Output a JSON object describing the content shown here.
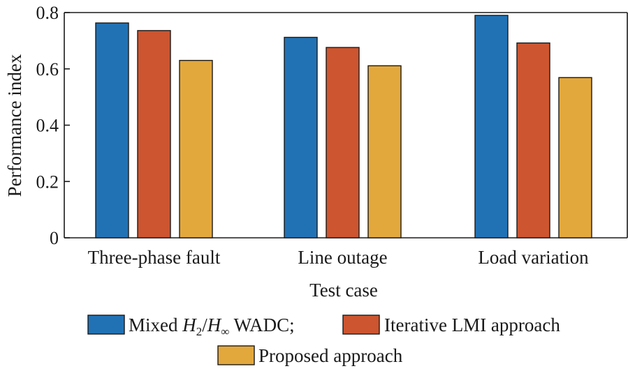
{
  "chart_data": {
    "type": "bar",
    "title": "",
    "xlabel": "Test case",
    "ylabel": "Performance index",
    "ylim": [
      0,
      0.8
    ],
    "y_ticks": [
      {
        "value": 0,
        "label": "0"
      },
      {
        "value": 0.2,
        "label": "0.2"
      },
      {
        "value": 0.4,
        "label": "0.4"
      },
      {
        "value": 0.6,
        "label": "0.6"
      },
      {
        "value": 0.8,
        "label": "0.8"
      }
    ],
    "categories": [
      "Three-phase fault",
      "Line outage",
      "Load variation"
    ],
    "series": [
      {
        "name": "Mixed H2/H∞ WADC",
        "legend": {
          "prefix": "Mixed ",
          "h": "H",
          "sub1": "2",
          "slash": "/",
          "sub2": "∞",
          "suffix": " WADC;"
        },
        "color": "#2172b5",
        "values": [
          0.763,
          0.712,
          0.79
        ]
      },
      {
        "name": "Iterative LMI approach",
        "legend_label": "Iterative LMI approach",
        "color": "#cd5530",
        "values": [
          0.736,
          0.676,
          0.692
        ]
      },
      {
        "name": "Proposed approach",
        "legend_label": "Proposed approach",
        "color": "#e3a83c",
        "values": [
          0.63,
          0.611,
          0.569
        ]
      }
    ],
    "grid": false,
    "legend_position": "bottom"
  }
}
